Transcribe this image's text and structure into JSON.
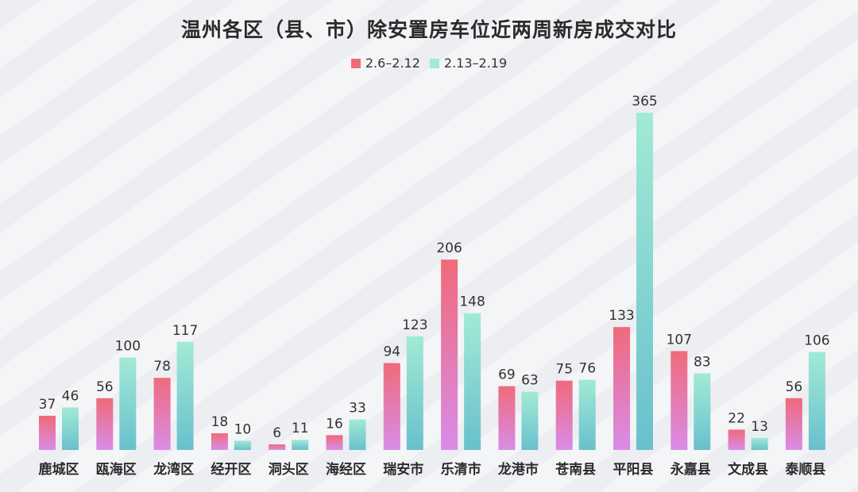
{
  "colors": {
    "series1_top": "#f06a7a",
    "series1_bottom": "#d98ce8",
    "series2_top": "#a2ead6",
    "series2_bottom": "#69c0cc"
  },
  "chart_data": {
    "type": "bar",
    "title": "温州各区（县、市）除安置房车位近两周新房成交对比",
    "categories": [
      "鹿城区",
      "瓯海区",
      "龙湾区",
      "经开区",
      "洞头区",
      "海经区",
      "瑞安市",
      "乐清市",
      "龙港市",
      "苍南县",
      "平阳县",
      "永嘉县",
      "文成县",
      "泰顺县"
    ],
    "series": [
      {
        "name": "2.6–2.12",
        "values": [
          37,
          56,
          78,
          18,
          6,
          16,
          94,
          206,
          69,
          75,
          133,
          107,
          22,
          56
        ]
      },
      {
        "name": "2.13–2.19",
        "values": [
          46,
          100,
          117,
          10,
          11,
          33,
          123,
          148,
          63,
          76,
          365,
          83,
          13,
          106
        ]
      }
    ],
    "ylim": [
      0,
      365
    ],
    "grid": false,
    "legend_position": "top-center"
  }
}
